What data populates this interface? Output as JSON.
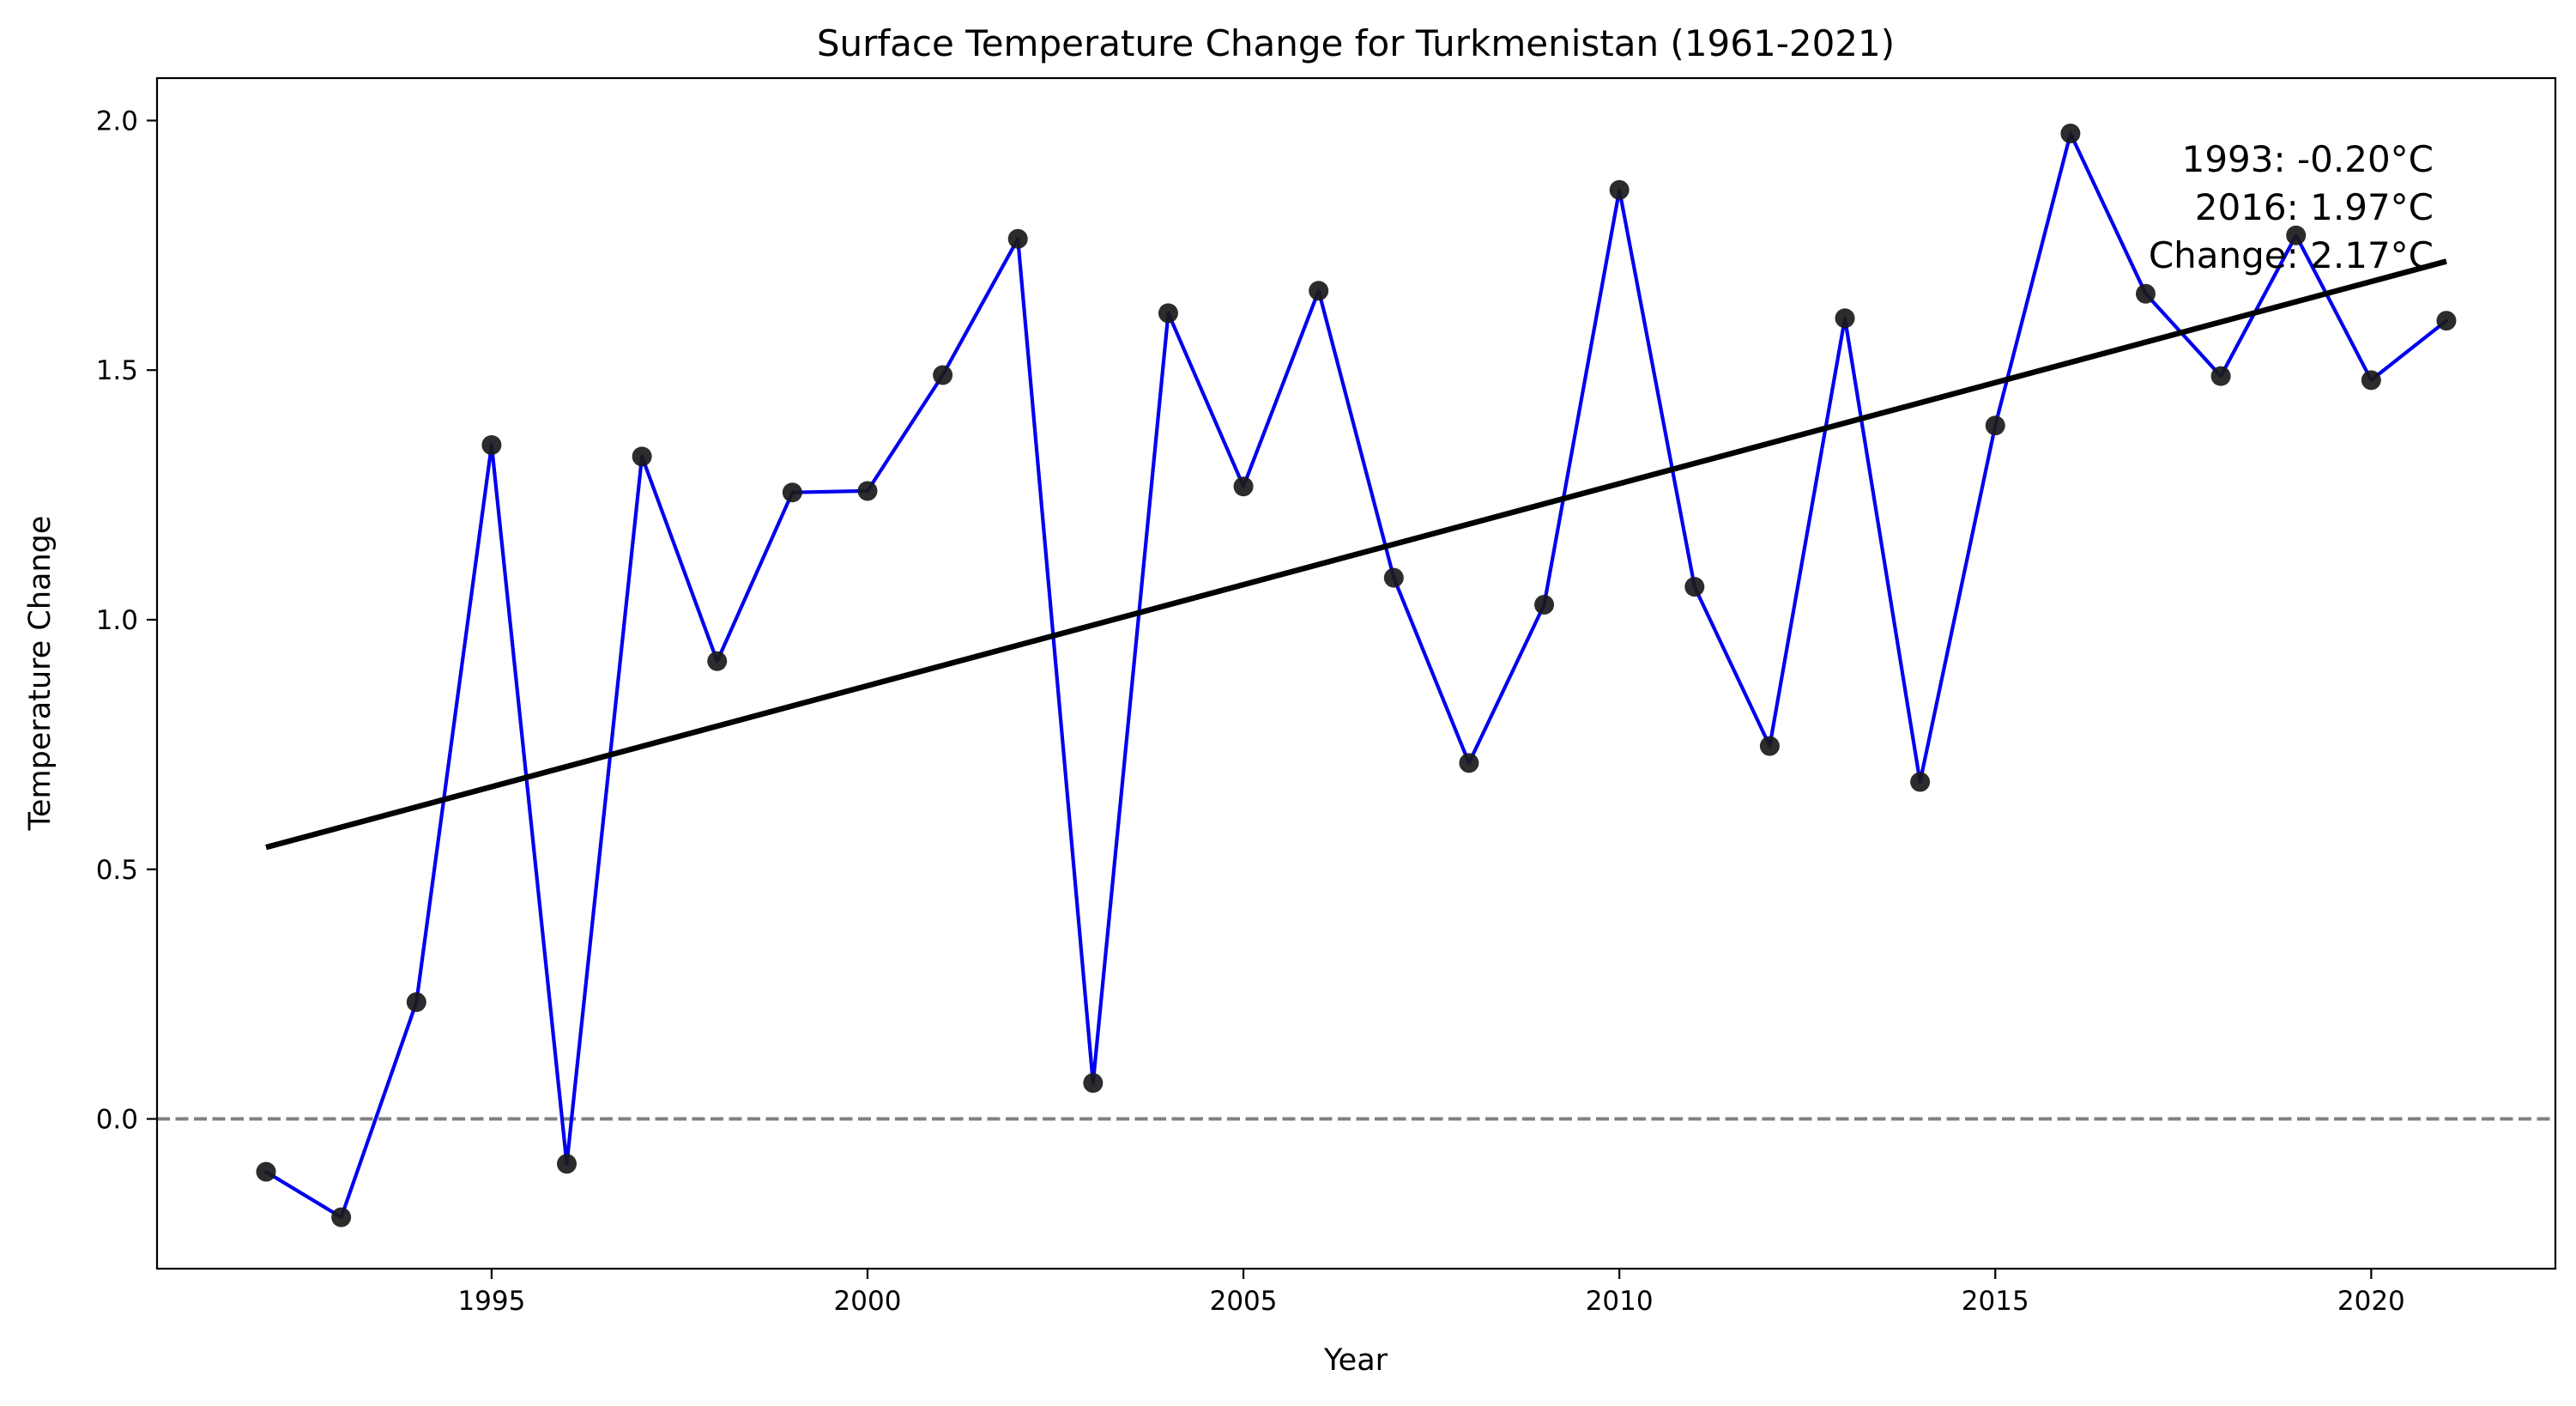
{
  "chart_data": {
    "type": "line",
    "title": "Surface Temperature Change for Turkmenistan (1961-2021)",
    "xlabel": "Year",
    "ylabel": "Temperature Change",
    "xlim": [
      1990.55,
      2022.45
    ],
    "ylim": [
      -0.3,
      2.085
    ],
    "xticks": [
      1995,
      2000,
      2005,
      2010,
      2015,
      2020
    ],
    "xtick_labels": [
      "1995",
      "2000",
      "2005",
      "2010",
      "2015",
      "2020"
    ],
    "yticks": [
      0.0,
      0.5,
      1.0,
      1.5,
      2.0
    ],
    "ytick_labels": [
      "0.0",
      "0.5",
      "1.0",
      "1.5",
      "2.0"
    ],
    "grid": false,
    "x": [
      1992,
      1993,
      1994,
      1995,
      1996,
      1997,
      1998,
      1999,
      2000,
      2001,
      2002,
      2003,
      2004,
      2005,
      2006,
      2007,
      2008,
      2009,
      2010,
      2011,
      2012,
      2013,
      2014,
      2015,
      2016,
      2017,
      2018,
      2019,
      2020,
      2021
    ],
    "series": [
      {
        "values": [
          -0.106,
          -0.197,
          0.234,
          1.35,
          -0.09,
          1.327,
          0.917,
          1.255,
          1.258,
          1.49,
          1.763,
          0.072,
          1.614,
          1.267,
          1.659,
          1.084,
          0.713,
          1.03,
          1.861,
          1.066,
          0.747,
          1.604,
          0.675,
          1.389,
          1.974,
          1.653,
          1.488,
          1.77,
          1.48,
          1.599
        ],
        "line_color": "#0000ee",
        "marker_color": "#1a1a1a"
      }
    ],
    "trend_line": {
      "x": [
        1992,
        2021
      ],
      "y": [
        0.544,
        1.718
      ],
      "color": "#000000"
    },
    "reference_line": {
      "y": 0.0,
      "style": "dashed",
      "color": "#808080"
    },
    "annotation": {
      "lines": [
        "1993: -0.20°C",
        "2016: 1.97°C",
        "Change: 2.17°C"
      ],
      "color": "#ffa500"
    }
  }
}
